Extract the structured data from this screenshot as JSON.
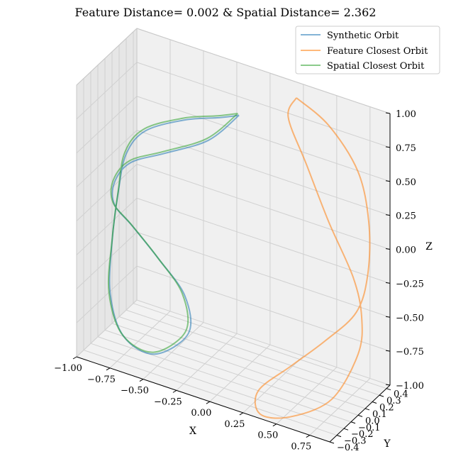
{
  "chart_data": {
    "type": "line",
    "projection": "3d",
    "title": "Feature Distance= 0.002 & Spatial Distance= 2.362",
    "xlabel": "X",
    "ylabel": "Y",
    "zlabel": "Z",
    "xlim": [
      -1.0,
      0.9
    ],
    "ylim": [
      -0.4,
      0.45
    ],
    "zlim": [
      -1.0,
      1.0
    ],
    "xticks": [
      -1.0,
      -0.75,
      -0.5,
      -0.25,
      0.0,
      0.25,
      0.5,
      0.75
    ],
    "xtick_labels": [
      "−1.00",
      "−0.75",
      "−0.50",
      "−0.25",
      "0.00",
      "0.25",
      "0.50",
      "0.75"
    ],
    "yticks": [
      -0.4,
      -0.3,
      -0.2,
      -0.1,
      0.0,
      0.1,
      0.2,
      0.3,
      0.4
    ],
    "ytick_labels": [
      "−0.4",
      "−0.3",
      "−0.2",
      "−0.1",
      "0.0",
      "0.1",
      "0.2",
      "0.3",
      "0.4"
    ],
    "zticks": [
      -1.0,
      -0.75,
      -0.5,
      -0.25,
      0.0,
      0.25,
      0.5,
      0.75,
      1.0
    ],
    "ztick_labels": [
      "−1.00",
      "−0.75",
      "−0.50",
      "−0.25",
      "0.00",
      "0.25",
      "0.50",
      "0.75",
      "1.00"
    ],
    "grid": true,
    "legend_position": "top-right",
    "series": [
      {
        "name": "Synthetic Orbit",
        "color": "#1f77b4",
        "points": [
          [
            -0.02,
            0.05,
            0.88
          ],
          [
            -0.25,
            0.05,
            0.62
          ],
          [
            -0.55,
            0.0,
            0.45
          ],
          [
            -0.78,
            -0.05,
            0.33
          ],
          [
            -0.9,
            -0.05,
            0.15
          ],
          [
            -0.93,
            0.0,
            -0.05
          ],
          [
            -0.82,
            0.05,
            -0.2
          ],
          [
            -0.62,
            0.05,
            -0.38
          ],
          [
            -0.4,
            0.0,
            -0.55
          ],
          [
            -0.32,
            -0.1,
            -0.75
          ],
          [
            -0.52,
            -0.2,
            -0.92
          ],
          [
            -0.78,
            -0.15,
            -0.9
          ],
          [
            -0.96,
            0.0,
            -0.72
          ],
          [
            -1.0,
            0.1,
            -0.4
          ],
          [
            -0.98,
            0.15,
            -0.05
          ],
          [
            -0.92,
            0.15,
            0.25
          ],
          [
            -0.75,
            0.1,
            0.5
          ],
          [
            -0.45,
            0.1,
            0.68
          ],
          [
            -0.18,
            0.07,
            0.8
          ],
          [
            -0.02,
            0.05,
            0.88
          ]
        ]
      },
      {
        "name": "Feature Closest Orbit",
        "color": "#ff7f0e",
        "points": [
          [
            0.25,
            0.35,
            0.95
          ],
          [
            0.52,
            0.3,
            0.86
          ],
          [
            0.78,
            0.22,
            0.65
          ],
          [
            0.9,
            0.15,
            0.35
          ],
          [
            0.92,
            0.1,
            0.0
          ],
          [
            0.86,
            0.05,
            -0.28
          ],
          [
            0.68,
            -0.05,
            -0.5
          ],
          [
            0.48,
            -0.15,
            -0.7
          ],
          [
            0.3,
            -0.28,
            -0.88
          ],
          [
            0.35,
            -0.35,
            -1.0
          ],
          [
            0.55,
            -0.3,
            -0.98
          ],
          [
            0.78,
            -0.15,
            -0.85
          ],
          [
            0.9,
            0.0,
            -0.55
          ],
          [
            0.9,
            0.05,
            -0.3
          ],
          [
            0.82,
            0.08,
            -0.05
          ],
          [
            0.6,
            0.15,
            0.25
          ],
          [
            0.38,
            0.25,
            0.55
          ],
          [
            0.2,
            0.33,
            0.8
          ],
          [
            0.25,
            0.35,
            0.95
          ]
        ]
      },
      {
        "name": "Spatial Closest Orbit",
        "color": "#2ca02c",
        "points": [
          [
            -0.03,
            0.05,
            0.89
          ],
          [
            -0.26,
            0.05,
            0.63
          ],
          [
            -0.56,
            0.0,
            0.46
          ],
          [
            -0.79,
            -0.05,
            0.34
          ],
          [
            -0.91,
            -0.05,
            0.16
          ],
          [
            -0.94,
            0.0,
            -0.04
          ],
          [
            -0.83,
            0.05,
            -0.19
          ],
          [
            -0.63,
            0.05,
            -0.37
          ],
          [
            -0.42,
            0.0,
            -0.54
          ],
          [
            -0.34,
            -0.1,
            -0.74
          ],
          [
            -0.53,
            -0.2,
            -0.91
          ],
          [
            -0.79,
            -0.15,
            -0.89
          ],
          [
            -0.97,
            0.0,
            -0.71
          ],
          [
            -1.0,
            0.1,
            -0.39
          ],
          [
            -0.98,
            0.15,
            -0.04
          ],
          [
            -0.93,
            0.15,
            0.26
          ],
          [
            -0.76,
            0.1,
            0.51
          ],
          [
            -0.46,
            0.1,
            0.69
          ],
          [
            -0.19,
            0.07,
            0.81
          ],
          [
            -0.03,
            0.05,
            0.89
          ]
        ]
      }
    ]
  }
}
